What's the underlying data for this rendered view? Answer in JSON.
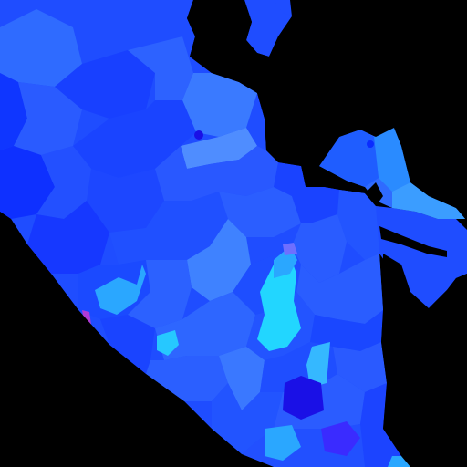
{
  "map": {
    "background": "#000000",
    "palette": {
      "deep": "#0a2cff",
      "mid": "#1f4dff",
      "mid2": "#2f6bff",
      "light": "#4f8dff",
      "sky": "#2aa7ff",
      "cyan": "#22d6ff",
      "cyan2": "#33eaff",
      "violet": "#5a3dff",
      "indigo": "#1a10e6",
      "magenta": "#b03ad6"
    }
  }
}
